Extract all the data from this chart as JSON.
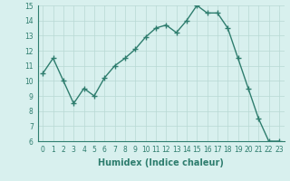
{
  "x": [
    0,
    1,
    2,
    3,
    4,
    5,
    6,
    7,
    8,
    9,
    10,
    11,
    12,
    13,
    14,
    15,
    16,
    17,
    18,
    19,
    20,
    21,
    22,
    23
  ],
  "y": [
    10.5,
    11.5,
    10.0,
    8.5,
    9.5,
    9.0,
    10.2,
    11.0,
    11.5,
    12.1,
    12.9,
    13.5,
    13.7,
    13.2,
    14.0,
    15.0,
    14.5,
    14.5,
    13.5,
    11.5,
    9.5,
    7.5,
    6.0,
    6.0
  ],
  "line_color": "#2e7d6e",
  "marker": "+",
  "marker_size": 4,
  "linewidth": 1.0,
  "xlabel": "Humidex (Indice chaleur)",
  "ylim": [
    6,
    15
  ],
  "xlim": [
    -0.5,
    23.5
  ],
  "yticks": [
    6,
    7,
    8,
    9,
    10,
    11,
    12,
    13,
    14,
    15
  ],
  "xticks": [
    0,
    1,
    2,
    3,
    4,
    5,
    6,
    7,
    8,
    9,
    10,
    11,
    12,
    13,
    14,
    15,
    16,
    17,
    18,
    19,
    20,
    21,
    22,
    23
  ],
  "background_color": "#d8f0ee",
  "grid_color": "#b8d8d4",
  "tick_fontsize": 5.5,
  "xlabel_fontsize": 7,
  "tick_color": "#2e7d6e"
}
